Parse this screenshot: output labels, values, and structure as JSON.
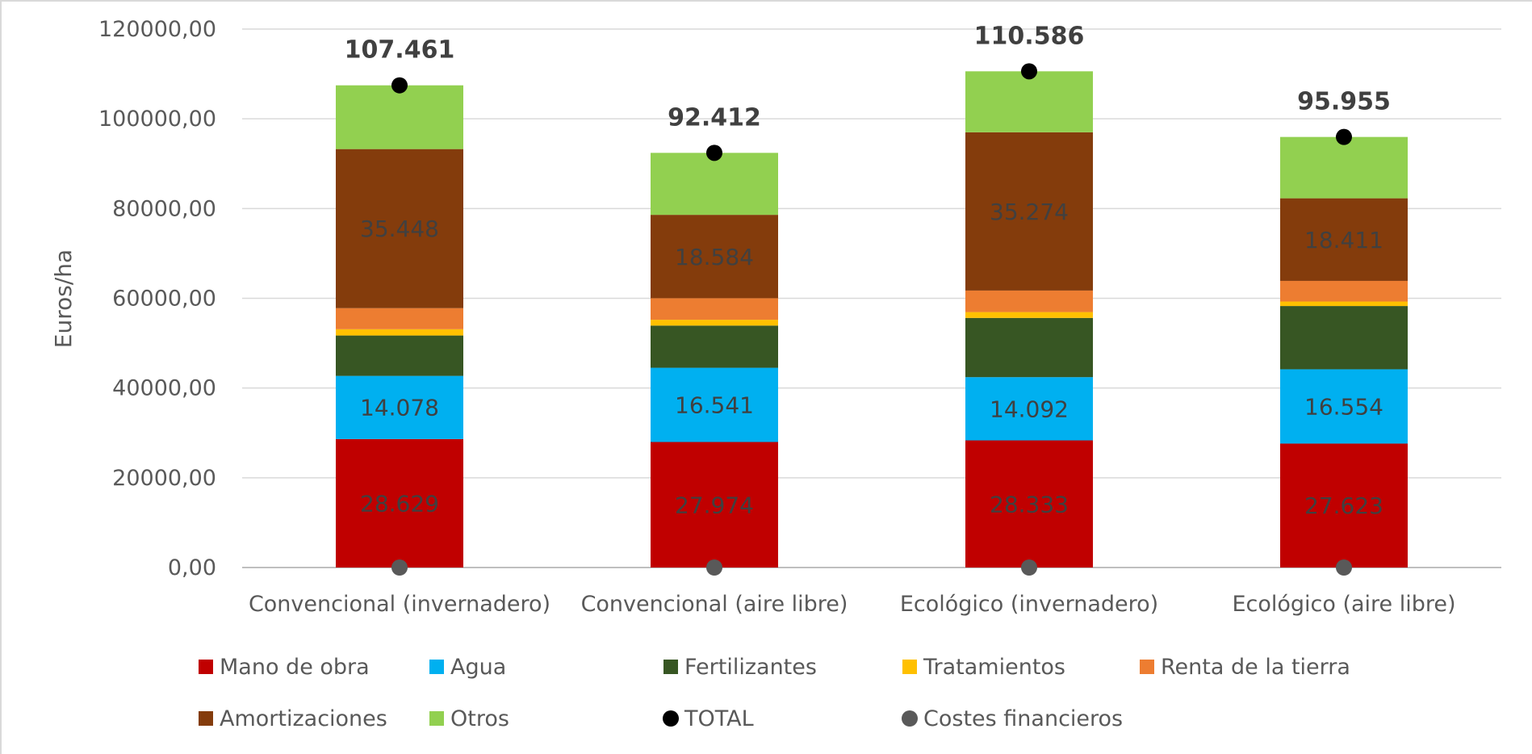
{
  "chart_data": {
    "type": "bar",
    "stacked": true,
    "ylabel": "Euros/ha",
    "ylim": [
      0,
      120000
    ],
    "yticks": [
      "0,00",
      "20000,00",
      "40000,00",
      "60000,00",
      "80000,00",
      "100000,00",
      "120000,00"
    ],
    "ytick_values": [
      0,
      20000,
      40000,
      60000,
      80000,
      100000,
      120000
    ],
    "grid": true,
    "legend_position": "bottom",
    "categories": [
      "Convencional (invernadero)",
      "Convencional (aire libre)",
      "Ecológico (invernadero)",
      "Ecológico (aire libre)"
    ],
    "series": [
      {
        "name": "Mano de obra",
        "color": "#C00000",
        "values": [
          28629,
          27974,
          28333,
          27623
        ],
        "labels": [
          "28.629",
          "27.974",
          "28.333",
          "27.623"
        ]
      },
      {
        "name": "Agua",
        "color": "#00B0F0",
        "values": [
          14078,
          16541,
          14092,
          16554
        ],
        "labels": [
          "14.078",
          "16.541",
          "14.092",
          "16.554"
        ]
      },
      {
        "name": "Fertilizantes",
        "color": "#375623",
        "values": [
          9000,
          9400,
          13200,
          14100
        ],
        "labels": []
      },
      {
        "name": "Tratamientos",
        "color": "#FFC000",
        "values": [
          1400,
          1300,
          1300,
          1000
        ],
        "labels": []
      },
      {
        "name": "Renta de la tierra",
        "color": "#ED7D31",
        "values": [
          4700,
          4800,
          4800,
          4600
        ],
        "labels": []
      },
      {
        "name": "Amortizaciones",
        "color": "#843C0C",
        "values": [
          35448,
          18584,
          35274,
          18411
        ],
        "labels": [
          "35.448",
          "18.584",
          "35.274",
          "18.411"
        ]
      },
      {
        "name": "Otros",
        "color": "#92D050",
        "values": [
          14206,
          13813,
          13587,
          13667
        ],
        "labels": []
      }
    ],
    "total": {
      "name": "TOTAL",
      "color": "#000000",
      "values": [
        107461,
        92412,
        110586,
        95955
      ],
      "labels": [
        "107.461",
        "92.412",
        "110.586",
        "95.955"
      ]
    },
    "costes_financieros": {
      "name": "Costes financieros",
      "color": "#595959",
      "values": [
        0,
        0,
        0,
        0
      ]
    }
  }
}
